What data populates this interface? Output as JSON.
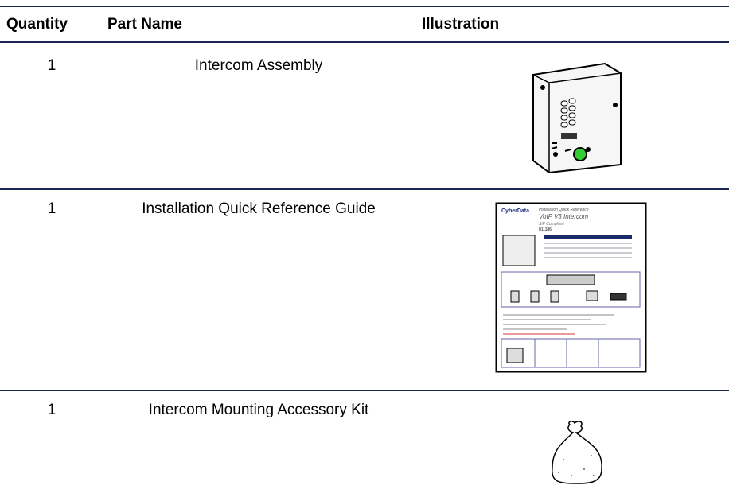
{
  "table": {
    "headers": [
      "Quantity",
      "Part Name",
      "Illustration"
    ],
    "rows": [
      [
        "1",
        "Intercom Assembly"
      ],
      [
        "1",
        "Installation Quick Reference Guide"
      ],
      [
        "1",
        "Intercom Mounting Accessory Kit"
      ]
    ]
  },
  "guide": {
    "brand": "CyberData",
    "kicker": "Installation Quick Reference",
    "title": "VoIP V3 Intercom",
    "subtitle": "SIP Compliant",
    "number": "011186"
  }
}
